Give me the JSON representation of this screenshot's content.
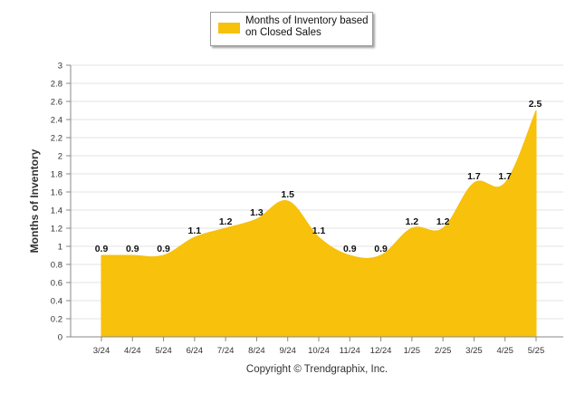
{
  "chart_data": {
    "type": "area",
    "categories": [
      "3/24",
      "4/24",
      "5/24",
      "6/24",
      "7/24",
      "8/24",
      "9/24",
      "10/24",
      "11/24",
      "12/24",
      "1/25",
      "2/25",
      "3/25",
      "4/25",
      "5/25"
    ],
    "series": [
      {
        "name": "Months of Inventory based on Closed Sales",
        "values": [
          0.9,
          0.9,
          0.9,
          1.1,
          1.2,
          1.3,
          1.5,
          1.1,
          0.9,
          0.9,
          1.2,
          1.2,
          1.7,
          1.7,
          2.5
        ],
        "color": "#f7c10c"
      }
    ],
    "data_labels": [
      "0.9",
      "0.9",
      "0.9",
      "1.1",
      "1.2",
      "1.3",
      "1.5",
      "1.1",
      "0.9",
      "0.9",
      "1.2",
      "1.2",
      "1.7",
      "1.7",
      "2.5"
    ],
    "ylabel": "Months of Inventory",
    "xlabel": "",
    "ylim": [
      0,
      3
    ],
    "yticks": [
      0,
      0.2,
      0.4,
      0.6,
      0.8,
      1,
      1.2,
      1.4,
      1.6,
      1.8,
      2,
      2.2,
      2.4,
      2.6,
      2.8,
      3
    ],
    "ytick_labels": [
      "0",
      "0.2",
      "0.4",
      "0.6",
      "0.8",
      "1",
      "1.2",
      "1.4",
      "1.6",
      "1.8",
      "2",
      "2.2",
      "2.4",
      "2.6",
      "2.8",
      "3"
    ],
    "grid": true,
    "legend_position": "top"
  },
  "legend": {
    "label": "Months of Inventory based on Closed Sales",
    "color": "#f7c10c"
  },
  "footer": {
    "copyright": "Copyright © Trendgraphix, Inc."
  }
}
